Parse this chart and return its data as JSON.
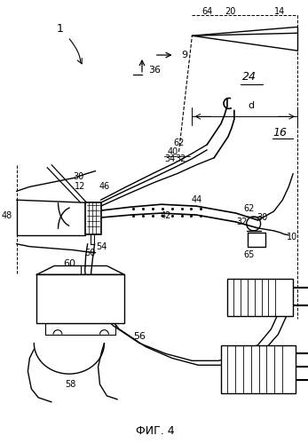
{
  "title": "ФИГ. 4",
  "background_color": "#ffffff",
  "line_color": "#000000"
}
